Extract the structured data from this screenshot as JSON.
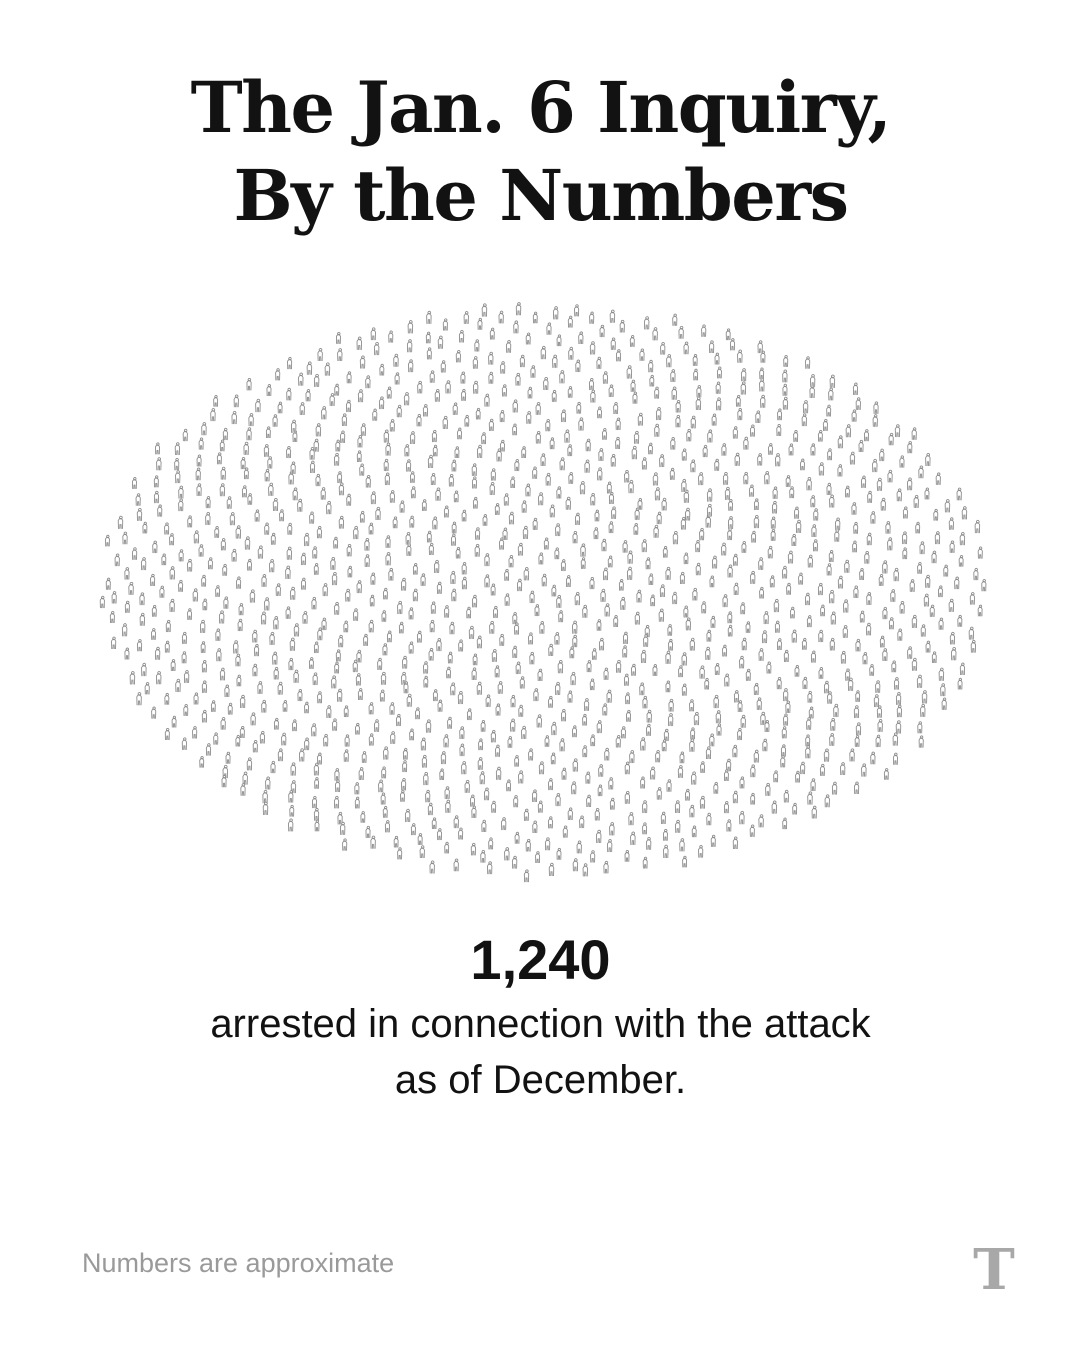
{
  "title": {
    "line1": "The Jan. 6 Inquiry,",
    "line2": "By the Numbers"
  },
  "stat": {
    "value": "1,240",
    "count": 1240,
    "caption_line1": "arrested in connection with the attack",
    "caption_line2": "as of December."
  },
  "footnote": "Numbers are approximate",
  "logo": {
    "letter": "T",
    "icon": "nyt-logo-icon"
  },
  "colors": {
    "text": "#121212",
    "figure_stroke": "#8c8c8c",
    "muted": "#9a9a9a",
    "logo": "#a8a8a8"
  }
}
